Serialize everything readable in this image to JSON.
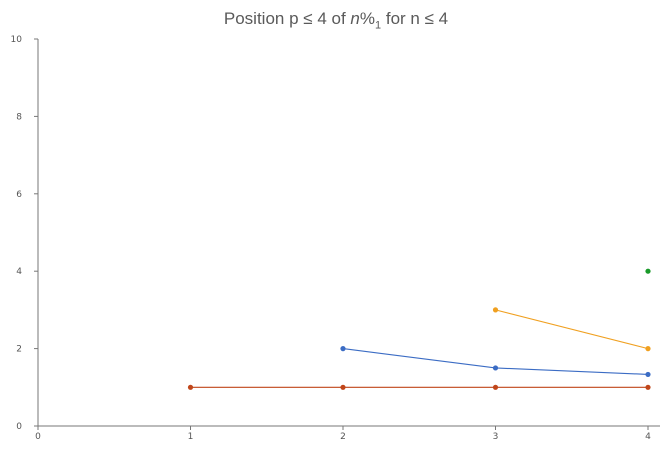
{
  "title": {
    "prefix": "Position p ≤ 4 of ",
    "var": "n",
    "op": "%",
    "sub": "1",
    "suffix": " for n ≤ 4"
  },
  "chart_data": {
    "type": "line",
    "title": "Position p ≤ 4 of n%1 for n ≤ 4",
    "xlabel": "",
    "ylabel": "",
    "xlim": [
      0,
      4
    ],
    "ylim": [
      0,
      10
    ],
    "x_ticks": [
      0,
      1,
      2,
      3,
      4
    ],
    "y_ticks": [
      0,
      2,
      4,
      6,
      8,
      10
    ],
    "grid": false,
    "series": [
      {
        "color": "#c0461a",
        "x": [
          1,
          2,
          3,
          4
        ],
        "values": [
          1,
          1,
          1,
          1
        ]
      },
      {
        "color": "#3b6cc4",
        "x": [
          2,
          3,
          4
        ],
        "values": [
          2,
          1.5,
          1.333
        ]
      },
      {
        "color": "#f0a020",
        "x": [
          3,
          4
        ],
        "values": [
          3,
          2
        ]
      },
      {
        "color": "#1a9a2a",
        "x": [
          4
        ],
        "values": [
          4
        ]
      }
    ]
  }
}
